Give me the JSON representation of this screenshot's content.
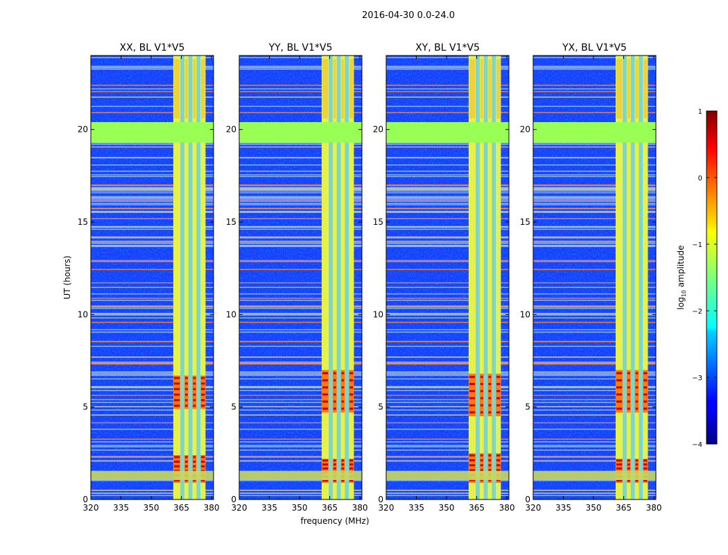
{
  "chart_data": {
    "type": "heatmap",
    "suptitle": "2016-04-30 0.0-24.0",
    "xlabel": "frequency (MHz)",
    "ylabel": "UT (hours)",
    "xlim": [
      320,
      381
    ],
    "ylim": [
      0,
      24
    ],
    "xticks": [
      320,
      335,
      350,
      365,
      380
    ],
    "yticks": [
      0,
      5,
      10,
      15,
      20
    ],
    "colorbar": {
      "label_base": "log",
      "label_sub": "10",
      "label_rest": " amplitude",
      "colormap": "jet",
      "range": [
        -4,
        1
      ],
      "ticks": [
        1,
        0,
        -1,
        -2,
        -3,
        -4
      ],
      "tick_labels": [
        "1",
        "0",
        "−1",
        "−2",
        "−3",
        "−4"
      ]
    },
    "panels": [
      {
        "title": "XX, BL V1*V5",
        "band_freq": [
          361,
          377
        ],
        "bright_hours": [
          [
            0.9,
            2.4
          ],
          [
            4.9,
            6.7
          ]
        ]
      },
      {
        "title": "YY, BL V1*V5",
        "band_freq": [
          361,
          377
        ],
        "bright_hours": [
          [
            0.9,
            2.2
          ],
          [
            4.7,
            7.0
          ]
        ]
      },
      {
        "title": "XY, BL V1*V5",
        "band_freq": [
          361,
          377
        ],
        "bright_hours": [
          [
            0.9,
            2.5
          ],
          [
            4.5,
            6.8
          ]
        ]
      },
      {
        "title": "YX, BL V1*V5",
        "band_freq": [
          361,
          377
        ],
        "bright_hours": [
          [
            0.9,
            2.2
          ],
          [
            4.7,
            7.0
          ]
        ]
      }
    ],
    "flagged_hours": [
      19.3,
      20.4
    ]
  }
}
